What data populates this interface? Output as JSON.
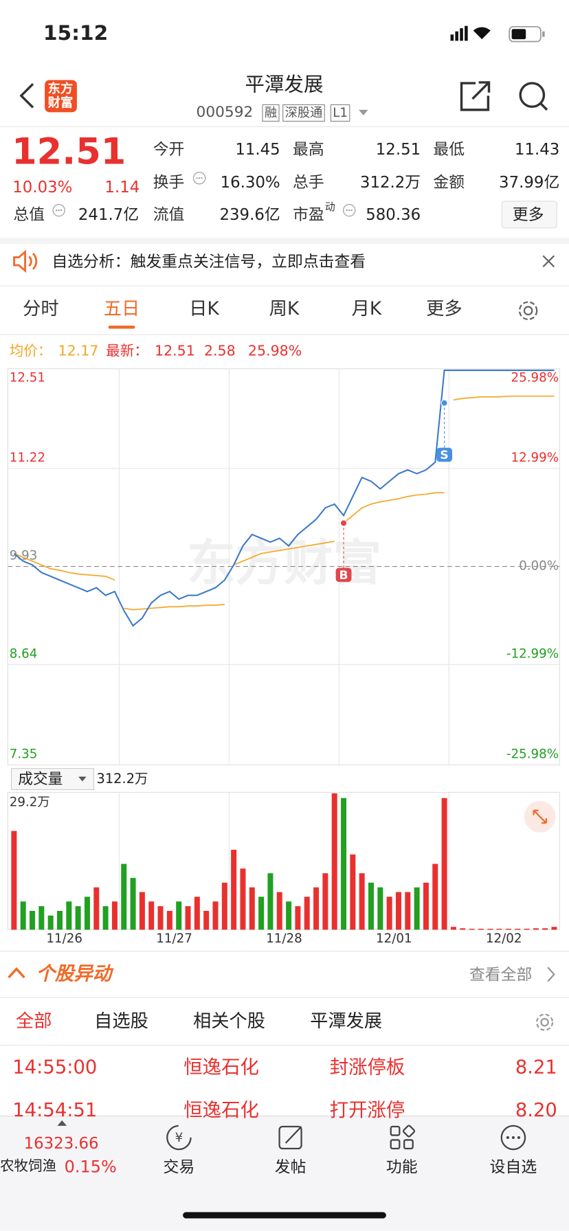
{
  "status": {
    "time": "15:12"
  },
  "header": {
    "logo_lines": [
      "东方",
      "财富"
    ],
    "title": "平潭发展",
    "code": "000592",
    "tags": [
      "融",
      "深股通",
      "L1"
    ]
  },
  "quote": {
    "price": "12.51",
    "change_pct": "10.03%",
    "change": "1.14",
    "more": "更多",
    "fields": [
      {
        "label": "今开",
        "value": "11.45"
      },
      {
        "label": "最高",
        "value": "12.51"
      },
      {
        "label": "最低",
        "value": "11.43"
      },
      {
        "label": "换手",
        "value": "16.30%"
      },
      {
        "label": "总手",
        "value": "312.2万"
      },
      {
        "label": "金额",
        "value": "37.99亿"
      },
      {
        "label": "总值",
        "value": "241.7亿"
      },
      {
        "label": "流值",
        "value": "239.6亿"
      },
      {
        "label": "市盈",
        "sup": "动",
        "value": "580.36"
      }
    ]
  },
  "banner": "自选分析：触发重点关注信号，立即点击查看",
  "tabs": {
    "items": [
      "分时",
      "五日",
      "日K",
      "周K",
      "月K",
      "更多"
    ],
    "active": 1
  },
  "legend": {
    "avg_label": "均价：",
    "avg": "12.17",
    "last_label": "最新：",
    "last": "12.51",
    "change": "2.58",
    "change_pct": "25.98%"
  },
  "chart_data": {
    "type": "line",
    "watermark": "东方财富",
    "categories": [
      "11/26",
      "11/27",
      "11/28",
      "12/01",
      "12/02"
    ],
    "ylim": [
      7.35,
      12.51
    ],
    "yticks": [
      12.51,
      11.22,
      9.93,
      8.64,
      7.35
    ],
    "y2lim": [
      -25.98,
      25.98
    ],
    "y2ticks": [
      {
        "value": 25.98,
        "label": "25.98%"
      },
      {
        "value": 12.99,
        "label": "12.99%"
      },
      {
        "value": 0,
        "label": "0.00%"
      },
      {
        "value": -12.99,
        "label": "-12.99%"
      },
      {
        "value": -25.98,
        "label": "-25.98%"
      }
    ],
    "price": {
      "color": "#3a78c8",
      "values": [
        10.1,
        10.0,
        9.95,
        9.85,
        9.8,
        9.75,
        9.7,
        9.65,
        9.6,
        9.65,
        9.55,
        9.6,
        9.35,
        9.15,
        9.25,
        9.45,
        9.55,
        9.6,
        9.5,
        9.55,
        9.55,
        9.6,
        9.65,
        9.75,
        9.95,
        10.2,
        10.35,
        10.3,
        10.25,
        10.3,
        10.2,
        10.35,
        10.45,
        10.55,
        10.7,
        10.75,
        10.6,
        10.85,
        11.1,
        11.05,
        10.95,
        11.05,
        11.15,
        11.2,
        11.15,
        11.2,
        11.3,
        12.51,
        12.51,
        12.51,
        12.51,
        12.51,
        12.51,
        12.51,
        12.51,
        12.51,
        12.51,
        12.51,
        12.51,
        12.51
      ]
    },
    "average": {
      "color": "#f5a623",
      "values": [
        [
          10.1,
          10.05,
          10.0,
          9.95,
          9.9,
          9.88,
          9.85,
          9.83,
          9.82,
          9.81,
          9.8,
          9.75
        ],
        [
          9.38,
          9.36,
          9.37,
          9.38,
          9.39,
          9.4,
          9.4,
          9.41,
          9.41,
          9.42,
          9.42,
          9.43
        ],
        [
          9.95,
          10.0,
          10.05,
          10.1,
          10.12,
          10.14,
          10.16,
          10.18,
          10.2,
          10.22,
          10.24,
          10.26
        ],
        [
          10.5,
          10.6,
          10.7,
          10.75,
          10.78,
          10.8,
          10.82,
          10.85,
          10.87,
          10.88,
          10.9,
          10.9
        ],
        [
          12.12,
          12.14,
          12.15,
          12.16,
          12.16,
          12.16,
          12.17,
          12.17,
          12.17,
          12.17,
          12.17,
          12.17
        ]
      ]
    },
    "markers": [
      {
        "label": "B",
        "at": 36,
        "value": 10.5,
        "color": "#e0464b"
      },
      {
        "label": "S",
        "at": 47,
        "value": 12.08,
        "color": "#4a90e2"
      }
    ],
    "volume": {
      "label": "成交量",
      "total": "312.2万",
      "ylim": [
        0,
        29.2
      ],
      "yticks": [
        {
          "value": 29.2,
          "label": "29.2万"
        }
      ],
      "values": [
        21,
        6,
        4,
        5,
        3,
        4,
        6,
        5,
        7,
        9,
        5,
        6,
        14,
        11,
        8,
        6,
        5,
        4,
        6,
        5,
        7,
        4,
        6,
        10,
        17,
        13,
        9,
        7,
        12,
        8,
        6,
        5,
        7,
        9,
        12,
        29,
        28,
        16,
        12,
        10,
        9,
        7,
        8,
        8,
        9,
        10,
        14,
        28,
        0.6,
        0.3,
        0.2,
        0.2,
        0.2,
        0.2,
        0.2,
        0.2,
        0.2,
        0.3,
        0.3,
        0.6
      ]
    }
  },
  "news": {
    "title": "个股异动",
    "view_all": "查看全部",
    "tabs": [
      "全部",
      "自选股",
      "相关个股",
      "平潭发展"
    ],
    "rows": [
      [
        "14:55:00",
        "恒逸石化",
        "封涨停板",
        "8.21"
      ],
      [
        "14:54:51",
        "恒逸石化",
        "打开涨停",
        "8.20"
      ]
    ]
  },
  "nav": {
    "index_value": "16323.66",
    "index_name": "农牧饲渔",
    "index_pct": "0.15%",
    "items": [
      "交易",
      "发帖",
      "功能",
      "设自选"
    ]
  }
}
